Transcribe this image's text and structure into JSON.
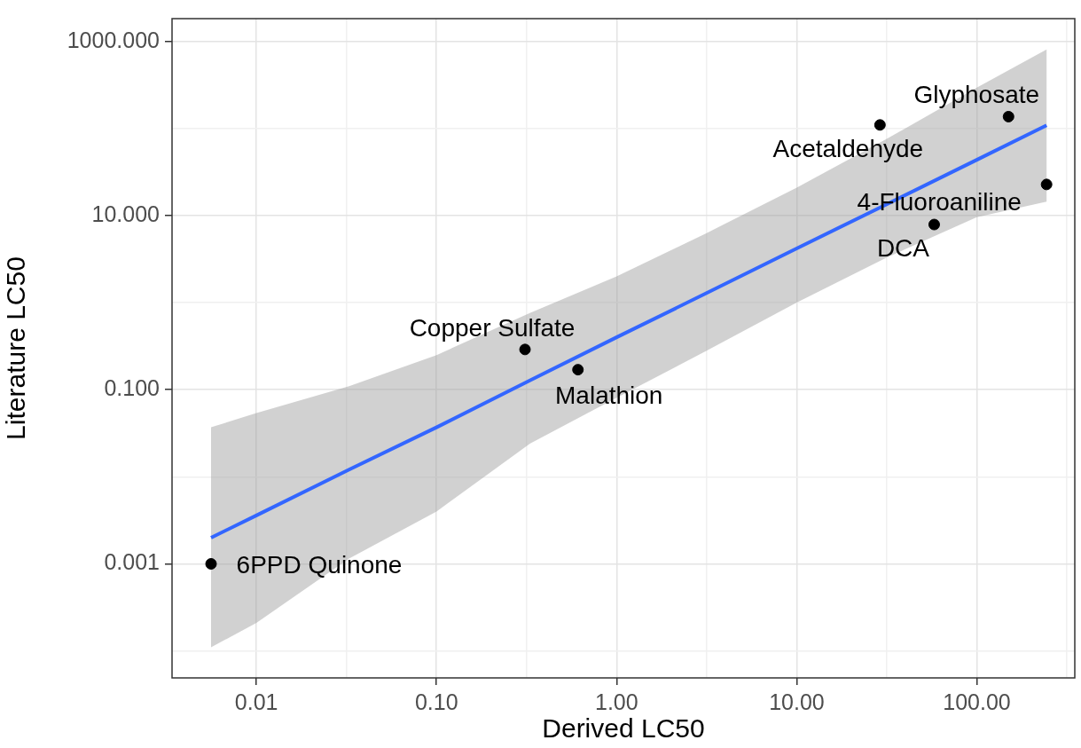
{
  "chart_data": {
    "type": "scatter",
    "xlabel": "Derived LC50",
    "ylabel": "Literature LC50",
    "log": "xy",
    "grid": true,
    "legend": false,
    "xlim": [
      0.0034,
      350
    ],
    "ylim": [
      4.9e-05,
      1830
    ],
    "xticks": [
      {
        "value": 0.0316,
        "label": null
      },
      0.01,
      {
        "value": 0.1,
        "label": "0.10"
      },
      {
        "value": 0.316,
        "label": null
      },
      {
        "value": 1,
        "label": "1.00"
      },
      {
        "value": 3.16,
        "label": null
      },
      {
        "value": 10,
        "label": "10.00"
      },
      {
        "value": 31.6,
        "label": null
      },
      {
        "value": 100,
        "label": "100.00"
      },
      {
        "value": 316,
        "label": null
      }
    ],
    "yticks": [
      {
        "value": 0.0001,
        "label": null
      },
      {
        "value": 0.001,
        "label": "0.001"
      },
      {
        "value": 0.01,
        "label": null
      },
      {
        "value": 0.1,
        "label": "0.100"
      },
      {
        "value": 1,
        "label": null
      },
      {
        "value": 10,
        "label": "10.000"
      },
      {
        "value": 100,
        "label": null
      },
      {
        "value": 1000,
        "label": "1000.000"
      }
    ],
    "series": [
      {
        "marker": "circle",
        "color": "#000000",
        "x": [
          0.0056,
          0.31,
          0.61,
          29,
          150,
          244,
          58
        ],
        "values": [
          0.001,
          0.29,
          0.17,
          110,
          137,
          22.8,
          7.9
        ]
      },
      {
        "type": "line",
        "marker": "none",
        "color": "#3366ff",
        "x": [
          0.0056,
          0.01,
          0.0327,
          0.1,
          0.33,
          1,
          3.16,
          10,
          31.6,
          100,
          244
        ],
        "values": [
          0.002,
          0.0036,
          0.0121,
          0.037,
          0.128,
          0.4,
          1.29,
          4.2,
          13.5,
          43.7,
          109
        ],
        "lower": [
          0.00011,
          0.00021,
          0.00115,
          0.004,
          0.024,
          0.081,
          0.28,
          1.0,
          3.3,
          9.6,
          14.5
        ],
        "upper": [
          0.037,
          0.054,
          0.11,
          0.25,
          0.76,
          2.0,
          6.3,
          21,
          76,
          295,
          810
        ]
      }
    ],
    "annotations": [
      {
        "text": "6PPD Quinone",
        "x": 0.0056,
        "y": 0.001
      },
      {
        "text": "Copper Sulfate",
        "x": 0.31,
        "y": 0.29
      },
      {
        "text": "Malathion",
        "x": 0.61,
        "y": 0.17
      },
      {
        "text": "Acetaldehyde",
        "x": 29,
        "y": 110
      },
      {
        "text": "Glyphosate",
        "x": 150,
        "y": 137
      },
      {
        "text": "4-Fluoroaniline",
        "x": 244,
        "y": 22.8
      },
      {
        "text": "DCA",
        "x": 58,
        "y": 7.9
      }
    ]
  }
}
